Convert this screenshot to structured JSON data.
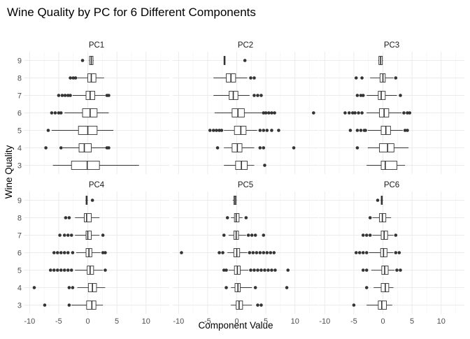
{
  "chart_data": {
    "type": "boxplot",
    "title": "Wine Quality by PC for 6 Different Components",
    "xlabel": "Component Value",
    "ylabel": "Wine Quality",
    "categories": [
      "3",
      "4",
      "5",
      "6",
      "7",
      "8",
      "9"
    ],
    "x_ticks": [
      "-10",
      "-5",
      "0",
      "5",
      "10"
    ],
    "xlim": [
      -11,
      14
    ],
    "grid": true,
    "facets": [
      {
        "name": "PC1",
        "boxes": [
          {
            "quality": "3",
            "min": -6.0,
            "q1": -2.8,
            "median": -0.1,
            "q3": 2.0,
            "max": 8.8,
            "outliers": []
          },
          {
            "quality": "4",
            "min": -4.3,
            "q1": -1.5,
            "median": -0.6,
            "q3": 0.6,
            "max": 3.2,
            "outliers": [
              -7.2,
              -4.6,
              3.3,
              3.6
            ]
          },
          {
            "quality": "5",
            "min": -6.2,
            "q1": -1.6,
            "median": 0.0,
            "q3": 1.6,
            "max": 4.4,
            "outliers": [
              -6.8
            ]
          },
          {
            "quality": "6",
            "min": -4.0,
            "q1": -0.9,
            "median": 0.4,
            "q3": 1.6,
            "max": 3.6,
            "outliers": [
              -6.2,
              -5.6,
              -5.0,
              -4.6
            ]
          },
          {
            "quality": "7",
            "min": -2.6,
            "q1": -0.3,
            "median": 0.4,
            "q3": 1.2,
            "max": 3.0,
            "outliers": [
              -5.0,
              -4.4,
              -3.9,
              -3.4,
              -3.0,
              3.3,
              3.6
            ]
          },
          {
            "quality": "8",
            "min": -1.8,
            "q1": 0.0,
            "median": 0.6,
            "q3": 1.4,
            "max": 2.8,
            "outliers": [
              -3.0,
              -2.5,
              -2.1
            ]
          },
          {
            "quality": "9",
            "min": 0.2,
            "q1": 0.3,
            "median": 0.6,
            "q3": 0.9,
            "max": 1.0,
            "outliers": [
              -0.9
            ]
          }
        ]
      },
      {
        "name": "PC2",
        "boxes": [
          {
            "quality": "3",
            "min": -2.2,
            "q1": -0.2,
            "median": 0.8,
            "q3": 1.8,
            "max": 3.0,
            "outliers": [
              4.8
            ]
          },
          {
            "quality": "4",
            "min": -2.2,
            "q1": -0.8,
            "median": 0.1,
            "q3": 0.9,
            "max": 3.0,
            "outliers": [
              -3.3,
              4.0,
              4.6,
              9.8
            ]
          },
          {
            "quality": "5",
            "min": -2.2,
            "q1": -0.4,
            "median": 0.7,
            "q3": 1.6,
            "max": 3.5,
            "outliers": [
              -4.6,
              -4.0,
              -3.5,
              -3.0,
              -2.6,
              4.0,
              4.6,
              5.2,
              6.0,
              7.2
            ]
          },
          {
            "quality": "6",
            "min": -3.8,
            "q1": -0.8,
            "median": 0.2,
            "q3": 1.3,
            "max": 4.3,
            "outliers": [
              4.6,
              5.0,
              5.5,
              6.0,
              6.5,
              13.2
            ]
          },
          {
            "quality": "7",
            "min": -4.0,
            "q1": -1.3,
            "median": -0.6,
            "q3": 0.2,
            "max": 2.2,
            "outliers": [
              3.0,
              3.6,
              4.2
            ]
          },
          {
            "quality": "8",
            "min": -4.0,
            "q1": -1.8,
            "median": -1.0,
            "q3": -0.2,
            "max": 1.8,
            "outliers": [
              2.4,
              3.0
            ]
          },
          {
            "quality": "9",
            "min": -2.2,
            "q1": -2.2,
            "median": -2.1,
            "q3": -2.0,
            "max": -2.0,
            "outliers": [
              1.4
            ]
          }
        ]
      },
      {
        "name": "PC3",
        "boxes": [
          {
            "quality": "3",
            "min": -2.8,
            "q1": -0.3,
            "median": 0.4,
            "q3": 2.4,
            "max": 3.8,
            "outliers": []
          },
          {
            "quality": "4",
            "min": -2.6,
            "q1": -0.6,
            "median": 0.8,
            "q3": 1.9,
            "max": 4.4,
            "outliers": [
              -4.4
            ]
          },
          {
            "quality": "5",
            "min": -2.6,
            "q1": -0.3,
            "median": 0.5,
            "q3": 1.3,
            "max": 3.4,
            "outliers": [
              -5.6,
              -4.4,
              -3.8,
              -3.2,
              -3.0,
              3.8,
              4.2
            ]
          },
          {
            "quality": "6",
            "min": -2.8,
            "q1": -0.6,
            "median": 0.2,
            "q3": 1.0,
            "max": 3.2,
            "outliers": [
              -6.5,
              -5.8,
              -5.2,
              -4.8,
              -4.2,
              -3.6,
              3.6,
              4.2,
              4.6
            ]
          },
          {
            "quality": "7",
            "min": -2.8,
            "q1": -0.8,
            "median": -0.3,
            "q3": 0.4,
            "max": 2.4,
            "outliers": [
              -4.4,
              -3.8,
              -3.4,
              3.0
            ]
          },
          {
            "quality": "8",
            "min": -2.2,
            "q1": -0.5,
            "median": 0.0,
            "q3": 0.4,
            "max": 1.8,
            "outliers": [
              -4.6,
              -3.6,
              2.2
            ]
          },
          {
            "quality": "9",
            "min": -0.8,
            "q1": -0.7,
            "median": -0.4,
            "q3": -0.1,
            "max": 0.0,
            "outliers": []
          }
        ]
      },
      {
        "name": "PC4",
        "boxes": [
          {
            "quality": "3",
            "min": -2.8,
            "q1": -0.2,
            "median": 0.7,
            "q3": 1.4,
            "max": 2.6,
            "outliers": [
              -7.4,
              -3.2
            ]
          },
          {
            "quality": "4",
            "min": -1.8,
            "q1": 0.1,
            "median": 0.8,
            "q3": 1.5,
            "max": 3.0,
            "outliers": [
              -9.2,
              -3.2,
              -2.6
            ]
          },
          {
            "quality": "5",
            "min": -2.2,
            "q1": -0.1,
            "median": 0.4,
            "q3": 1.0,
            "max": 2.6,
            "outliers": [
              -6.4,
              -5.8,
              -5.2,
              -4.6,
              -4.0,
              -3.4,
              -2.8,
              3.0
            ]
          },
          {
            "quality": "6",
            "min": -2.0,
            "q1": -0.3,
            "median": 0.2,
            "q3": 0.7,
            "max": 2.2,
            "outliers": [
              -5.8,
              -5.2,
              -4.6,
              -4.0,
              -3.4,
              -2.6,
              2.6,
              3.0
            ]
          },
          {
            "quality": "7",
            "min": -2.2,
            "q1": -0.3,
            "median": 0.0,
            "q3": 0.6,
            "max": 2.0,
            "outliers": [
              -4.8,
              -4.0,
              -3.4,
              -2.8,
              2.6
            ]
          },
          {
            "quality": "8",
            "min": -2.2,
            "q1": -0.6,
            "median": -0.2,
            "q3": 0.6,
            "max": 2.0,
            "outliers": [
              -3.8,
              -3.2
            ]
          },
          {
            "quality": "9",
            "min": -0.4,
            "q1": -0.3,
            "median": -0.2,
            "q3": -0.1,
            "max": 0.0,
            "outliers": [
              0.8
            ]
          }
        ]
      },
      {
        "name": "PC5",
        "boxes": [
          {
            "quality": "3",
            "min": -1.0,
            "q1": -0.1,
            "median": 0.4,
            "q3": 1.0,
            "max": 2.6,
            "outliers": [
              3.6,
              4.2
            ]
          },
          {
            "quality": "4",
            "min": -1.0,
            "q1": -0.3,
            "median": 0.2,
            "q3": 0.6,
            "max": 2.6,
            "outliers": [
              -1.8,
              3.2,
              8.6
            ]
          },
          {
            "quality": "5",
            "min": -1.4,
            "q1": -0.4,
            "median": 0.1,
            "q3": 0.6,
            "max": 2.0,
            "outliers": [
              -2.2,
              -1.8,
              2.4,
              3.0,
              3.6,
              4.2,
              4.8,
              5.4,
              6.0,
              6.6,
              8.8
            ]
          },
          {
            "quality": "6",
            "min": -1.6,
            "q1": -0.5,
            "median": 0.0,
            "q3": 0.5,
            "max": 1.8,
            "outliers": [
              -9.5,
              -3.0,
              -2.4,
              2.2,
              2.8,
              3.4,
              4.0,
              4.6,
              5.2,
              5.8,
              6.4
            ]
          },
          {
            "quality": "7",
            "min": -1.4,
            "q1": -0.5,
            "median": -0.1,
            "q3": 0.3,
            "max": 1.6,
            "outliers": [
              -2.2,
              2.0,
              2.6,
              3.2,
              4.6
            ]
          },
          {
            "quality": "8",
            "min": -1.0,
            "q1": -0.4,
            "median": -0.1,
            "q3": 0.4,
            "max": 1.0,
            "outliers": [
              -1.6,
              1.6
            ]
          },
          {
            "quality": "9",
            "min": -0.7,
            "q1": -0.5,
            "median": -0.3,
            "q3": -0.1,
            "max": 0.0,
            "outliers": []
          }
        ]
      },
      {
        "name": "PC6",
        "boxes": [
          {
            "quality": "3",
            "min": -2.8,
            "q1": -0.8,
            "median": -0.2,
            "q3": 0.6,
            "max": 1.6,
            "outliers": [
              -5.0
            ]
          },
          {
            "quality": "4",
            "min": -1.6,
            "q1": -0.3,
            "median": 0.4,
            "q3": 1.0,
            "max": 1.8,
            "outliers": [
              -2.8
            ]
          },
          {
            "quality": "5",
            "min": -2.0,
            "q1": -0.2,
            "median": 0.3,
            "q3": 0.9,
            "max": 2.0,
            "outliers": [
              -3.4,
              -2.8,
              2.4,
              3.0
            ]
          },
          {
            "quality": "6",
            "min": -2.4,
            "q1": -0.4,
            "median": 0.1,
            "q3": 0.7,
            "max": 1.8,
            "outliers": [
              -4.6,
              -4.0,
              -3.4,
              -2.8,
              2.2,
              2.8
            ]
          },
          {
            "quality": "7",
            "min": -1.8,
            "q1": -0.3,
            "median": 0.2,
            "q3": 0.8,
            "max": 1.8,
            "outliers": [
              -3.4,
              -2.8,
              -2.2,
              2.2
            ]
          },
          {
            "quality": "8",
            "min": -1.8,
            "q1": -0.6,
            "median": -0.1,
            "q3": 0.5,
            "max": 1.4,
            "outliers": [
              -2.2
            ]
          },
          {
            "quality": "9",
            "min": -0.4,
            "q1": -0.3,
            "median": -0.2,
            "q3": -0.1,
            "max": 0.0,
            "outliers": [
              -0.9
            ]
          }
        ]
      }
    ]
  }
}
